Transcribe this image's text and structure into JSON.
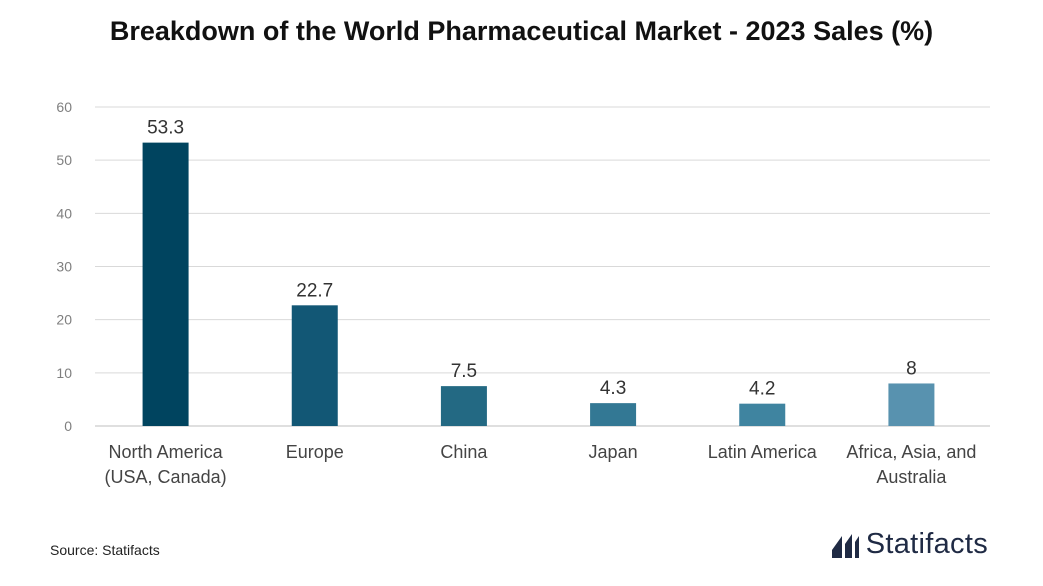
{
  "chart_data": {
    "type": "bar",
    "title": "Breakdown of the World Pharmaceutical Market - 2023 Sales (%)",
    "categories": [
      [
        "North America",
        "(USA, Canada)"
      ],
      [
        "Europe"
      ],
      [
        "China"
      ],
      [
        "Japan"
      ],
      [
        "Latin America"
      ],
      [
        "Africa, Asia, and",
        "Australia"
      ]
    ],
    "values": [
      53.3,
      22.7,
      7.5,
      4.3,
      4.2,
      8
    ],
    "value_labels": [
      "53.3",
      "22.7",
      "7.5",
      "4.3",
      "4.2",
      "8"
    ],
    "bar_colors": [
      "#00445f",
      "#125775",
      "#236983",
      "#337894",
      "#3f84a0",
      "#5892af"
    ],
    "ylim": [
      0,
      60
    ],
    "yticks": [
      0,
      10,
      20,
      30,
      40,
      50,
      60
    ],
    "xlabel": "",
    "ylabel": "",
    "grid": true
  },
  "footer": {
    "source": "Source: Statifacts",
    "brand": "Statifacts"
  },
  "colors": {
    "brand": "#1f2a44",
    "grid": "#d9d9d9",
    "tick_text": "#7f7f7f"
  }
}
